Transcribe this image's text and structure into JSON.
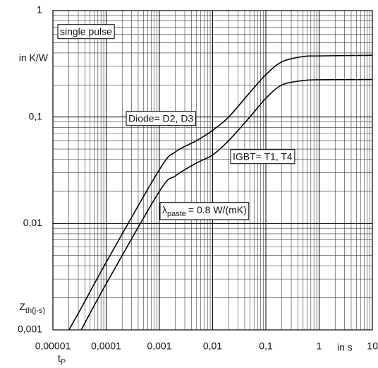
{
  "chart_data": {
    "type": "line",
    "log_x": true,
    "log_y": true,
    "grid": true,
    "minor_grid": true,
    "xlim": [
      1e-05,
      10
    ],
    "ylim": [
      0.001,
      1
    ],
    "xticks": [
      {
        "value": 1e-05,
        "label": "0,00001"
      },
      {
        "value": 0.0001,
        "label": "0,0001"
      },
      {
        "value": 0.001,
        "label": "0,001"
      },
      {
        "value": 0.01,
        "label": "0,01"
      },
      {
        "value": 0.1,
        "label": "0,1"
      },
      1,
      10
    ],
    "yticks": [
      {
        "value": 0.001,
        "label": "0,001"
      },
      {
        "value": 0.01,
        "label": "0,01"
      },
      {
        "value": 0.1,
        "label": "0,1"
      },
      1
    ],
    "x_unit": "in s",
    "xlabel": {
      "symbol": "t",
      "subscript": "P"
    },
    "y_unit": "in K/W",
    "ylabel": {
      "symbol": "Z",
      "subscript": "th(j-s)"
    },
    "annotation": "single pulse",
    "lambda_label": {
      "symbol": "λ",
      "subscript": "paste",
      "text": "= 0.8 W/(mK)"
    },
    "x": [
      2e-05,
      3.4e-05,
      0.0001,
      0.001,
      0.002,
      0.005,
      0.01,
      0.02,
      0.05,
      0.1,
      0.2,
      0.5,
      1,
      10
    ],
    "series": [
      {
        "name": "Diode= D2, D3",
        "color": "#000000",
        "values": [
          0.001,
          0.0016,
          0.0043,
          0.032,
          0.047,
          0.06,
          0.075,
          0.1,
          0.17,
          0.25,
          0.33,
          0.37,
          0.375,
          0.38
        ]
      },
      {
        "name": "IGBT= T1, T4",
        "color": "#000000",
        "values": [
          null,
          0.001,
          0.0027,
          0.02,
          0.028,
          0.037,
          0.044,
          0.06,
          0.1,
          0.15,
          0.2,
          0.22,
          0.224,
          0.225
        ]
      }
    ]
  }
}
